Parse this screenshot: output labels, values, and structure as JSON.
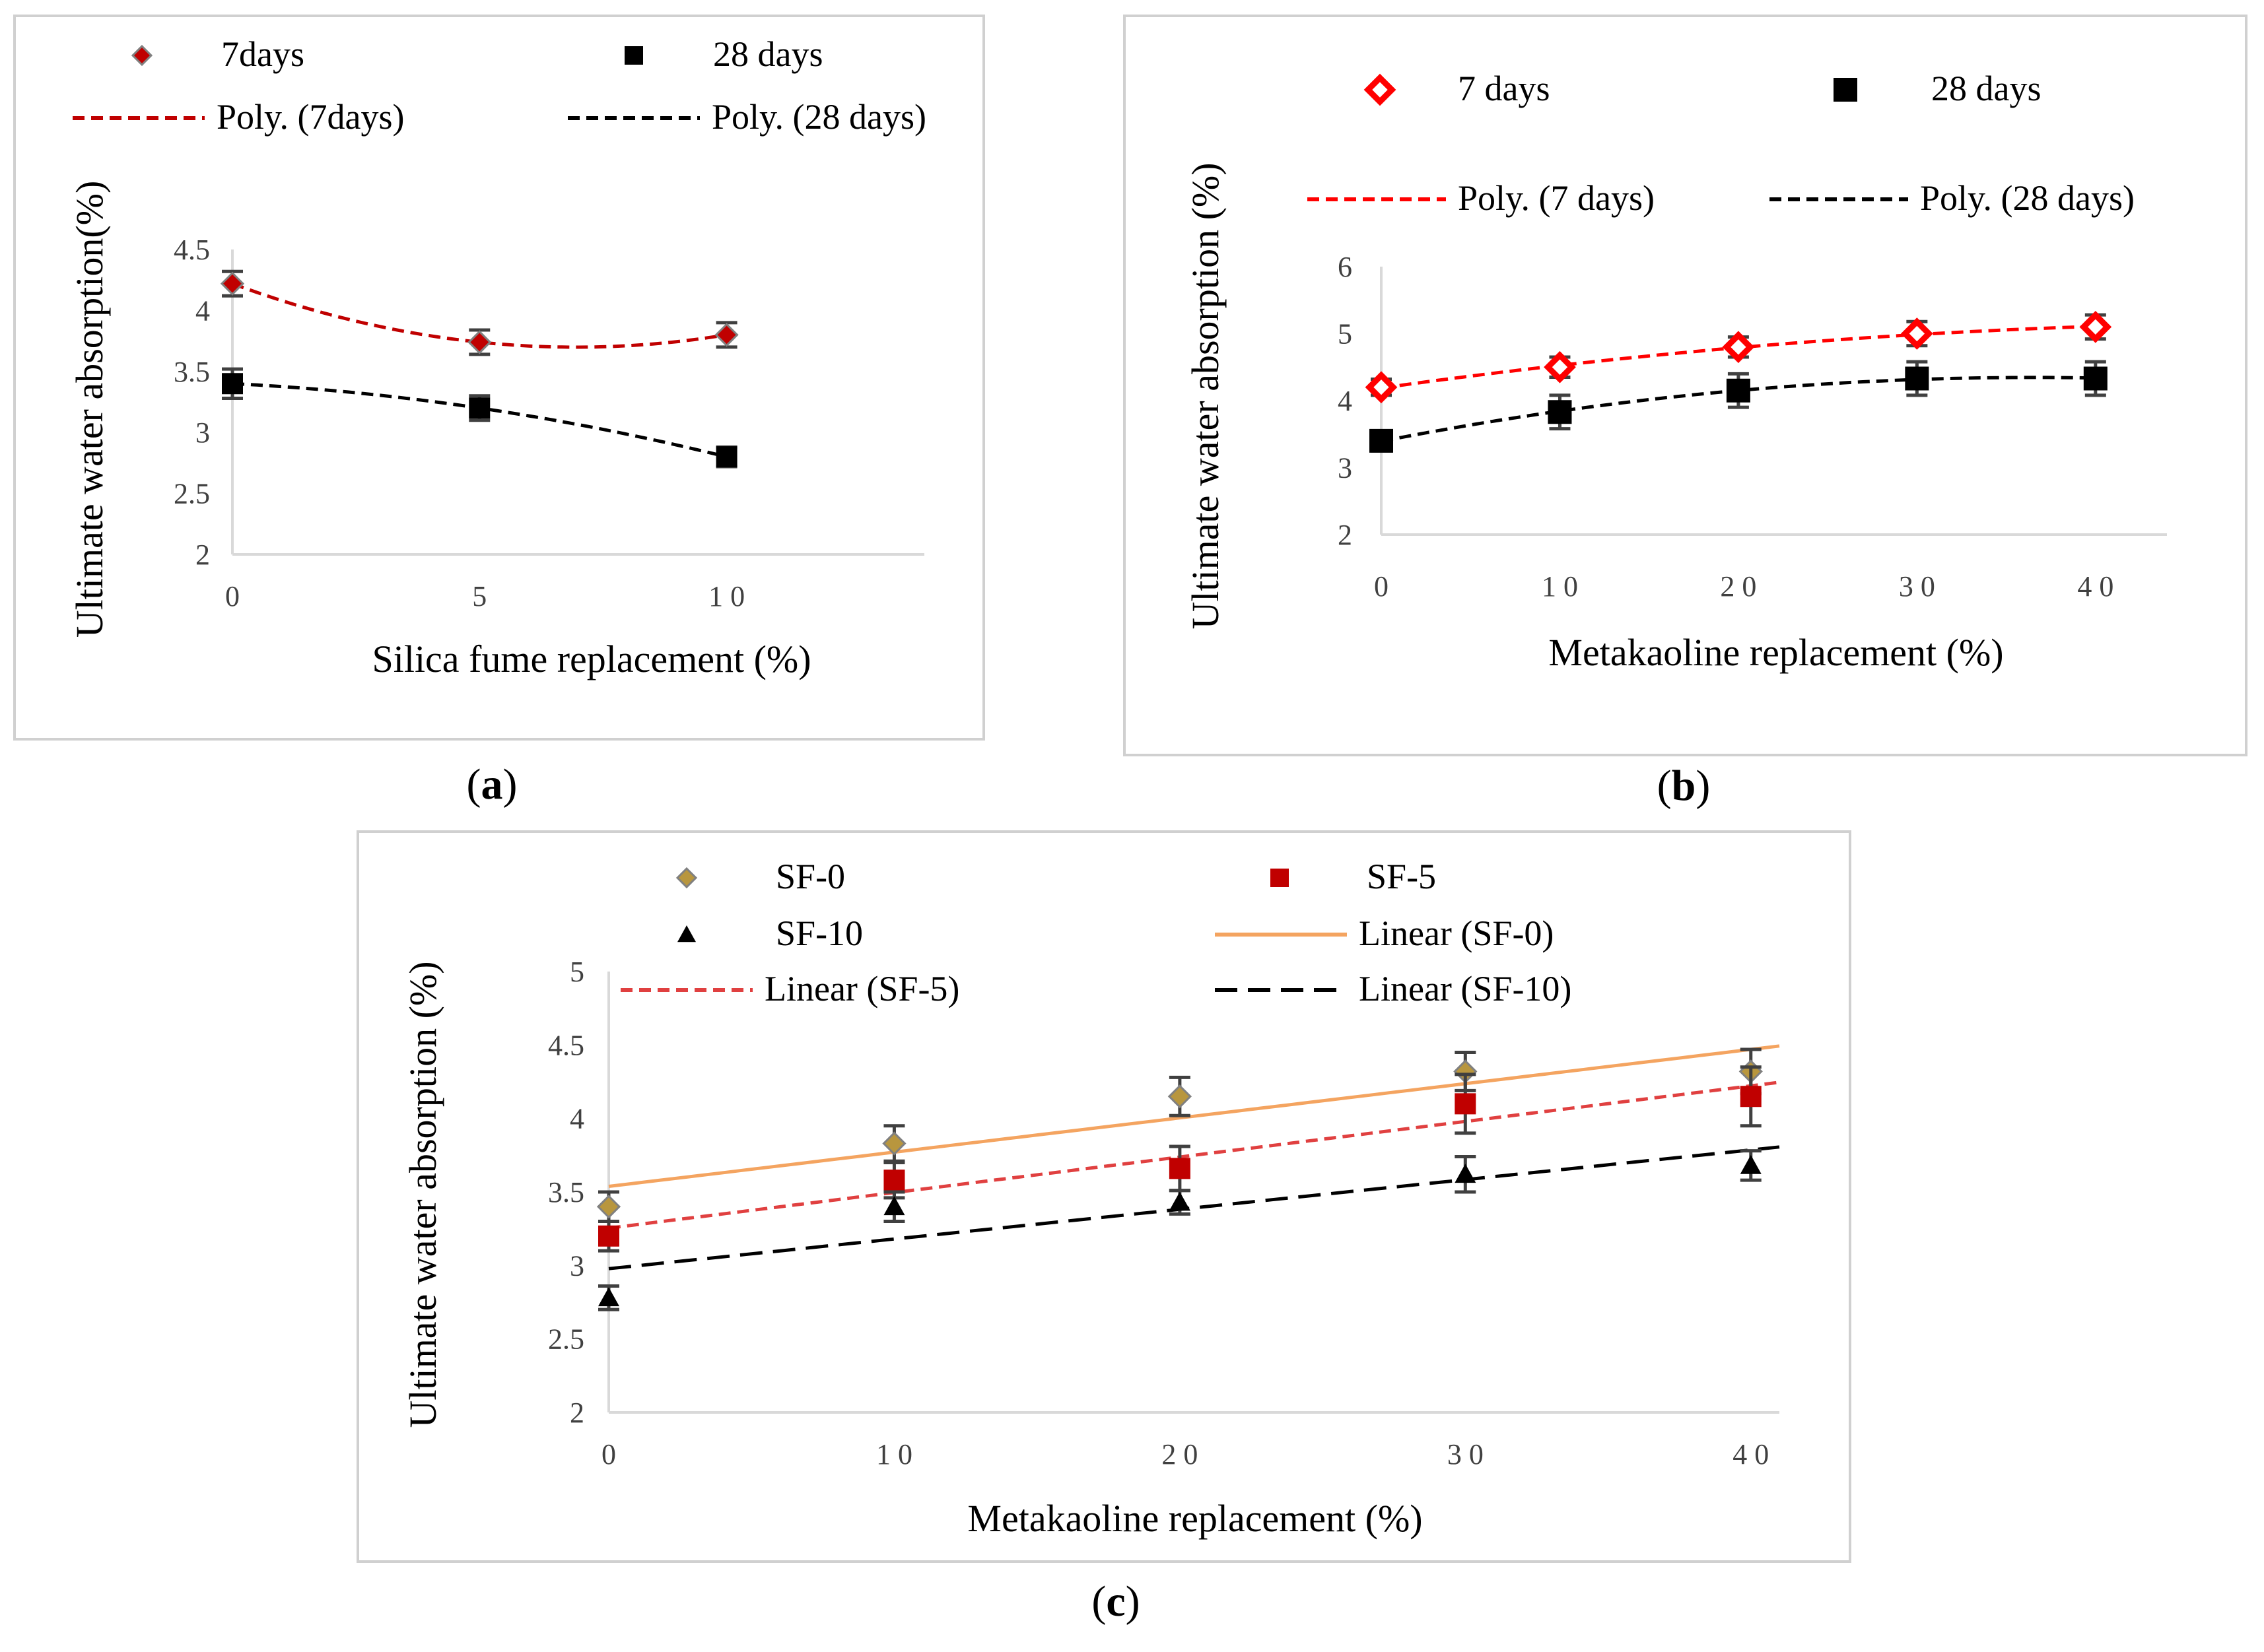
{
  "chart_data": [
    {
      "id": "a",
      "type": "scatter",
      "caption": "(a)",
      "caption_letter": "a",
      "xlabel": "Silica fume replacement (%)",
      "ylabel": "Ultimate water absorption(%)",
      "xlim": [
        0,
        14
      ],
      "ylim": [
        2,
        4.5
      ],
      "xticks": [
        0,
        5,
        10
      ],
      "xtick_labels": [
        "0",
        "5",
        "1 0"
      ],
      "yticks": [
        2,
        2.5,
        3,
        3.5,
        4,
        4.5
      ],
      "ytick_labels": [
        "2",
        "2.5",
        "3",
        "3.5",
        "4",
        "4.5"
      ],
      "series": [
        {
          "name": "7days",
          "marker": "diamond",
          "color": "#c00000",
          "x": [
            0,
            5,
            10
          ],
          "values": [
            4.22,
            3.74,
            3.8
          ],
          "errors": [
            0.1,
            0.1,
            0.1
          ]
        },
        {
          "name": "28 days",
          "marker": "square",
          "color": "#000000",
          "x": [
            0,
            5,
            10
          ],
          "values": [
            3.4,
            3.2,
            2.8
          ],
          "errors": [
            0.12,
            0.1,
            0.08
          ]
        }
      ],
      "trendlines": [
        {
          "name": "Poly. (7days)",
          "kind": "poly2",
          "of": "7days",
          "color": "#c00000",
          "dash": "dashed"
        },
        {
          "name": "Poly. (28 days)",
          "kind": "poly2",
          "of": "28 days",
          "color": "#000000",
          "dash": "dashed"
        }
      ]
    },
    {
      "id": "b",
      "type": "scatter",
      "caption": "(b)",
      "caption_letter": "b",
      "xlabel": "Metakaoline replacement (%)",
      "ylabel": "Ultimate water absorption (%)",
      "xlim": [
        0,
        44
      ],
      "ylim": [
        2,
        6
      ],
      "xticks": [
        0,
        10,
        20,
        30,
        40
      ],
      "xtick_labels": [
        "0",
        "1 0",
        "2 0",
        "3 0",
        "4 0"
      ],
      "yticks": [
        2,
        3,
        4,
        5,
        6
      ],
      "ytick_labels": [
        "2",
        "3",
        "4",
        "5",
        "6"
      ],
      "series": [
        {
          "name": "7 days",
          "marker": "diamond-open",
          "color": "#ff0000",
          "x": [
            0,
            10,
            20,
            30,
            40
          ],
          "values": [
            4.2,
            4.5,
            4.8,
            5.0,
            5.1
          ],
          "errors": [
            0.12,
            0.15,
            0.15,
            0.18,
            0.18
          ]
        },
        {
          "name": "28 days",
          "marker": "square",
          "color": "#000000",
          "x": [
            0,
            10,
            20,
            30,
            40
          ],
          "values": [
            3.4,
            3.83,
            4.15,
            4.33,
            4.33
          ],
          "errors": [
            0.15,
            0.25,
            0.25,
            0.25,
            0.25
          ]
        }
      ],
      "trendlines": [
        {
          "name": "Poly. (7 days)",
          "kind": "poly2",
          "of": "7 days",
          "color": "#ff0000",
          "dash": "dashed"
        },
        {
          "name": "Poly. (28 days)",
          "kind": "poly2",
          "of": "28 days",
          "color": "#000000",
          "dash": "dashed"
        }
      ]
    },
    {
      "id": "c",
      "type": "scatter",
      "caption": "(c)",
      "caption_letter": "c",
      "xlabel": "Metakaoline replacement (%)",
      "ylabel": "Ultimate water absorption (%)",
      "xlim": [
        0,
        41
      ],
      "ylim": [
        2,
        5
      ],
      "xticks": [
        0,
        10,
        20,
        30,
        40
      ],
      "xtick_labels": [
        "0",
        "1 0",
        "2 0",
        "3 0",
        "4 0"
      ],
      "yticks": [
        2,
        2.5,
        3,
        3.5,
        4,
        4.5,
        5
      ],
      "ytick_labels": [
        "2",
        "2.5",
        "3",
        "3.5",
        "4",
        "4.5",
        "5"
      ],
      "series": [
        {
          "name": "SF-0",
          "marker": "diamond",
          "color": "#b8963e",
          "x": [
            0,
            10,
            20,
            30,
            40
          ],
          "values": [
            3.4,
            3.83,
            4.15,
            4.32,
            4.32
          ],
          "errors": [
            0.1,
            0.12,
            0.13,
            0.13,
            0.15
          ]
        },
        {
          "name": "SF-5",
          "marker": "square",
          "color": "#c00000",
          "x": [
            0,
            10,
            20,
            30,
            40
          ],
          "values": [
            3.2,
            3.58,
            3.66,
            4.1,
            4.15
          ],
          "errors": [
            0.1,
            0.12,
            0.15,
            0.2,
            0.2
          ]
        },
        {
          "name": "SF-10",
          "marker": "triangle",
          "color": "#000000",
          "x": [
            0,
            10,
            20,
            30,
            40
          ],
          "values": [
            2.78,
            3.4,
            3.43,
            3.62,
            3.68
          ],
          "errors": [
            0.08,
            0.1,
            0.08,
            0.12,
            0.1
          ]
        }
      ],
      "trendlines": [
        {
          "name": "Linear (SF-0)",
          "kind": "linear",
          "of": "SF-0",
          "color": "#f4a460",
          "dash": "solid"
        },
        {
          "name": "Linear (SF-5)",
          "kind": "linear",
          "of": "SF-5",
          "color": "#e04040",
          "dash": "dashed"
        },
        {
          "name": "Linear (SF-10)",
          "kind": "linear",
          "of": "SF-10",
          "color": "#000000",
          "dash": "longdash"
        }
      ]
    }
  ]
}
